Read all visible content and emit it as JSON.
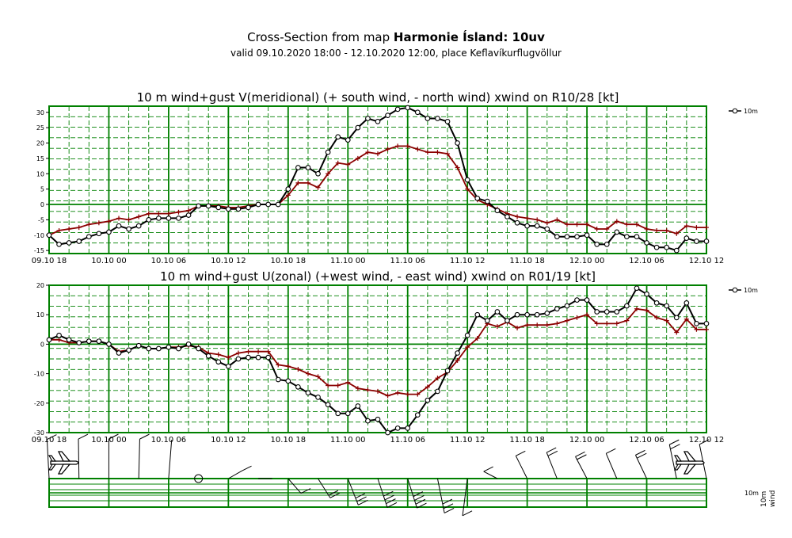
{
  "header": {
    "title_prefix": "Cross-Section from map ",
    "title_bold": "Harmonie Ísland: 10uv",
    "subtitle": "valid 09.10.2020 18:00 - 12.10.2020 12:00, place Keflavíkurflugvöllur"
  },
  "colors": {
    "grid": "#008000",
    "main": "#000000",
    "gust": "#8b0000"
  },
  "x_tick_labels": [
    "09.10 18",
    "10.10 00",
    "10.10 06",
    "10.10 12",
    "10.10 18",
    "11.10 00",
    "11.10 06",
    "11.10 12",
    "11.10 18",
    "12.10 00",
    "12.10 06",
    "12.10 12"
  ],
  "chart_data": [
    {
      "type": "line",
      "title": "10 m wind+gust V(meridional) (+ south wind, - north wind) xwind on R10/28 [kt]",
      "legend": "10m",
      "x_unit": "hours from 09.10 18:00",
      "xlim": [
        0,
        66
      ],
      "ylim": [
        -16,
        32
      ],
      "y_ticks": [
        -15,
        -10,
        -5,
        0,
        5,
        10,
        15,
        20,
        25,
        30
      ],
      "series": [
        {
          "name": "10m",
          "values": [
            -10,
            -13,
            -12.5,
            -12,
            -10.5,
            -9.5,
            -9,
            -7,
            -8,
            -7,
            -5,
            -4.5,
            -4.5,
            -4.5,
            -3.5,
            -0.5,
            -0.5,
            -1,
            -1.5,
            -1.5,
            -1,
            0,
            0,
            0,
            5,
            12,
            12,
            10,
            17,
            22,
            21,
            25,
            28,
            27,
            29,
            31,
            31.5,
            30,
            28,
            28,
            27,
            20,
            8,
            2,
            1,
            -2,
            -4,
            -6,
            -7,
            -7,
            -8,
            -10.5,
            -10.5,
            -10.5,
            -10,
            -13,
            -13,
            -9,
            -10.5,
            -10.5,
            -12.5,
            -14,
            -14,
            -15,
            -11,
            -12,
            -12
          ]
        },
        {
          "name": "gust",
          "values": [
            -10,
            -8.5,
            -8,
            -7.5,
            -6.5,
            -6,
            -5.5,
            -4.5,
            -5,
            -4,
            -3,
            -3,
            -3,
            -2.5,
            -2,
            -0.5,
            -0.5,
            -0.5,
            -1,
            -1,
            -0.5,
            0,
            0,
            0,
            3,
            7,
            7,
            5.5,
            10,
            13.5,
            13,
            15,
            17,
            16.5,
            18,
            19,
            19,
            18,
            17,
            17,
            16.5,
            12,
            5,
            1.5,
            0,
            -1.5,
            -3,
            -4,
            -4.5,
            -5,
            -6,
            -5,
            -6.5,
            -6.5,
            -6.5,
            -8,
            -8,
            -5.5,
            -6.5,
            -6.5,
            -8,
            -8.5,
            -8.5,
            -9.5,
            -7,
            -7.5,
            -7.5
          ]
        }
      ]
    },
    {
      "type": "line",
      "title": "10 m wind+gust U(zonal) (+west wind, - east wind) xwind on R01/19 [kt]",
      "legend": "10m",
      "x_unit": "hours from 09.10 18:00",
      "xlim": [
        0,
        66
      ],
      "ylim": [
        -30,
        20
      ],
      "y_ticks": [
        -30,
        -20,
        -10,
        0,
        10,
        20
      ],
      "series": [
        {
          "name": "10m",
          "values": [
            1.5,
            3,
            1.5,
            0.5,
            1,
            1,
            0,
            -3,
            -2,
            -0.5,
            -1.5,
            -1.5,
            -1,
            -1.5,
            0,
            -1.5,
            -4,
            -6,
            -7.5,
            -5,
            -4.5,
            -4.5,
            -4.5,
            -12,
            -12.5,
            -14.5,
            -16.5,
            -18,
            -20.5,
            -23.5,
            -23.5,
            -21,
            -26,
            -25.5,
            -30,
            -28.5,
            -28.5,
            -24,
            -19,
            -16,
            -9,
            -3,
            3,
            10,
            8,
            11,
            8,
            10,
            10,
            10,
            10.5,
            12,
            13,
            15,
            15,
            11,
            11,
            11,
            13,
            19,
            17,
            14,
            13,
            9,
            14,
            7,
            7
          ]
        },
        {
          "name": "gust",
          "values": [
            1.5,
            1.5,
            0.5,
            0.5,
            1,
            1,
            0,
            -2.5,
            -2,
            -0.5,
            -1.5,
            -1.5,
            -1,
            -1,
            -0.5,
            -1,
            -3,
            -3.5,
            -4.5,
            -3,
            -2.5,
            -2.5,
            -2.5,
            -7,
            -7.5,
            -8.5,
            -10,
            -11,
            -14,
            -14,
            -13,
            -15,
            -15.5,
            -16,
            -17.5,
            -16.5,
            -17,
            -17,
            -14.5,
            -11.5,
            -9.5,
            -5.5,
            -1,
            2,
            7,
            6,
            7.5,
            5.5,
            6.5,
            6.5,
            6.5,
            7,
            8,
            9,
            10,
            7,
            7,
            7,
            8,
            12,
            11.5,
            9,
            8,
            4,
            8.5,
            5,
            5
          ]
        }
      ]
    }
  ],
  "lower_panel": {
    "label_10m": "10m",
    "label_wind": "wind"
  }
}
